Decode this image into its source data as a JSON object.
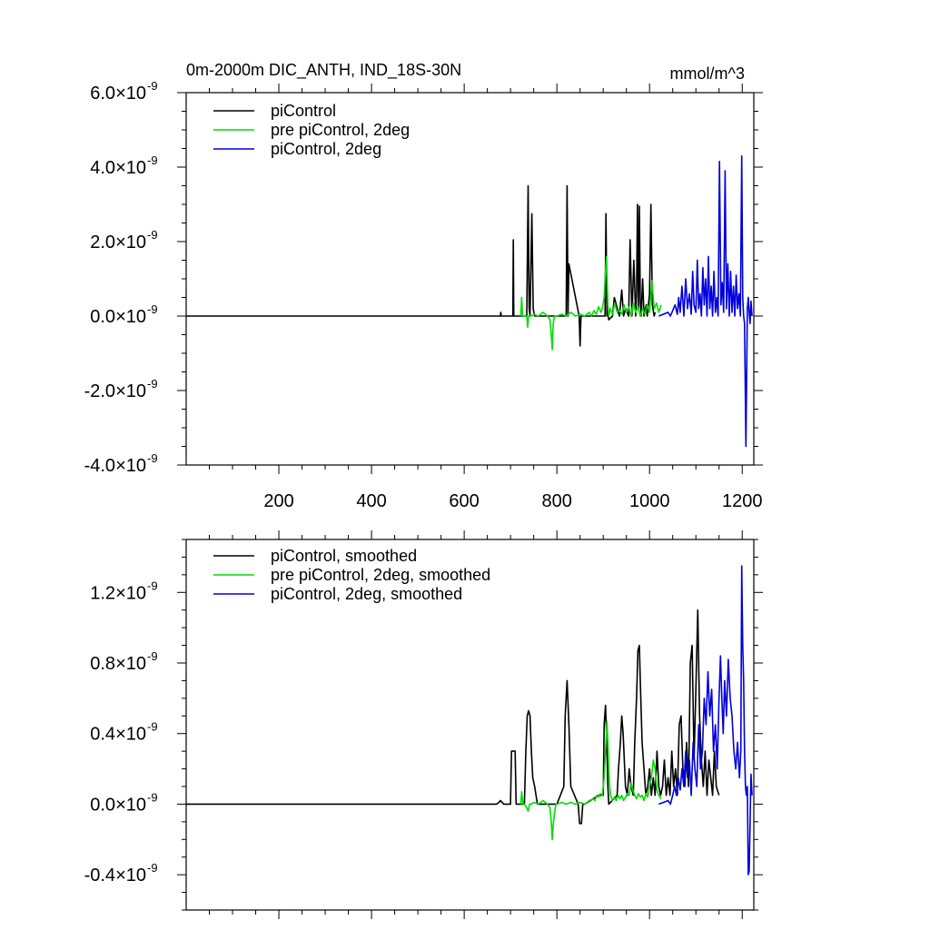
{
  "chart_data": [
    {
      "type": "line",
      "title": "0m-2000m DIC_ANTH, IND_18S-30N",
      "units": "mmol/m^3",
      "xlim": [
        0,
        1225
      ],
      "ylim": [
        -4.0,
        6.0
      ],
      "y_multiplier_label": "×10",
      "y_exponent_label": "-9",
      "x_ticks": [
        200,
        400,
        600,
        800,
        1000,
        1200
      ],
      "x_tick_labels": [
        "200",
        "400",
        "600",
        "800",
        "1000",
        "1200"
      ],
      "y_ticks": [
        -4.0,
        -2.0,
        0.0,
        2.0,
        4.0,
        6.0
      ],
      "y_tick_labels": [
        "-4.0",
        "-2.0",
        "0.0",
        "2.0",
        "4.0",
        "6.0"
      ],
      "legend_position": "top-left",
      "series": [
        {
          "name": "piControl",
          "color": "#000000",
          "x": [
            0,
            678,
            679,
            680,
            705,
            706,
            707,
            735,
            738,
            740,
            742,
            746,
            749,
            752,
            820,
            822,
            824,
            826,
            848,
            850,
            852,
            904,
            906,
            908,
            910,
            912,
            920,
            924,
            935,
            940,
            944,
            948,
            955,
            958,
            962,
            966,
            970,
            972,
            974,
            976,
            978,
            980,
            982,
            985,
            988,
            993,
            995,
            1000,
            1003,
            1006,
            1010,
            1012
          ],
          "values": [
            0,
            0,
            0.1,
            0,
            0,
            2.05,
            0,
            0,
            3.5,
            0.2,
            0,
            2.75,
            0.2,
            0,
            0,
            3.5,
            0,
            1.4,
            0,
            -0.8,
            0,
            0,
            2.75,
            0,
            0.1,
            -0.1,
            0,
            0.5,
            0,
            0.7,
            0,
            0.2,
            0,
            2.05,
            0,
            1.5,
            0,
            0.6,
            3.0,
            0.2,
            2.95,
            0.4,
            0,
            1.0,
            0,
            0.3,
            0,
            0.6,
            3.0,
            0.3,
            0,
            0.1
          ]
        },
        {
          "name": "pre piControl, 2deg",
          "color": "#00dd00",
          "x": [
            722,
            724,
            726,
            730,
            735,
            737,
            739,
            745,
            750,
            760,
            770,
            780,
            785,
            788,
            790,
            792,
            795,
            800,
            810,
            820,
            830,
            840,
            850,
            860,
            870,
            875,
            880,
            885,
            890,
            895,
            898,
            900,
            902,
            905,
            907,
            910,
            912,
            915,
            920,
            925,
            930,
            935,
            940,
            945,
            950,
            955,
            960,
            965,
            970,
            975,
            980,
            985,
            990,
            995,
            1000,
            1005,
            1010,
            1015,
            1020,
            1025
          ],
          "values": [
            0,
            0.5,
            0,
            0,
            0,
            -0.3,
            0,
            0,
            0.05,
            0,
            0.1,
            0,
            -0.1,
            -0.5,
            -0.9,
            -0.2,
            0,
            0,
            0.05,
            0,
            0.1,
            0,
            0.05,
            0,
            0.1,
            0,
            0.15,
            0.05,
            0.25,
            0.1,
            0.2,
            0.35,
            0.5,
            1.2,
            1.6,
            0.3,
            0,
            0.2,
            0.05,
            0.35,
            0.1,
            0.15,
            0.05,
            0.3,
            0.1,
            0.25,
            0,
            0.35,
            0.1,
            0.25,
            0,
            0.2,
            0.05,
            0.3,
            0.1,
            0.95,
            0.2,
            0.35,
            0.1,
            0.3
          ]
        },
        {
          "name": "piControl, 2deg",
          "color": "#0000dd",
          "x": [
            1020,
            1030,
            1040,
            1045,
            1050,
            1055,
            1060,
            1063,
            1066,
            1070,
            1074,
            1078,
            1082,
            1086,
            1090,
            1093,
            1096,
            1100,
            1103,
            1106,
            1109,
            1112,
            1115,
            1118,
            1121,
            1124,
            1127,
            1130,
            1133,
            1136,
            1139,
            1142,
            1145,
            1148,
            1151,
            1154,
            1157,
            1160,
            1163,
            1166,
            1169,
            1172,
            1175,
            1178,
            1181,
            1184,
            1187,
            1190,
            1193,
            1196,
            1199,
            1201,
            1203,
            1205,
            1208,
            1211,
            1213,
            1215,
            1217,
            1219,
            1221
          ],
          "values": [
            0,
            0.05,
            0.1,
            0,
            0.15,
            0.3,
            0.05,
            0.5,
            0.1,
            0.8,
            0,
            1.0,
            0.2,
            0.6,
            0.05,
            1.2,
            0.3,
            0.1,
            1.5,
            0.2,
            0.6,
            0,
            1.3,
            0.3,
            1.0,
            0,
            1.6,
            0.2,
            0.8,
            0,
            1.2,
            0.1,
            0.5,
            0,
            4.15,
            0.3,
            0.9,
            0.1,
            3.9,
            0.2,
            1.4,
            0,
            1.2,
            0.1,
            0.8,
            0,
            1.1,
            0.2,
            0.6,
            0,
            4.3,
            0.5,
            0,
            -0.2,
            -3.5,
            0.2,
            0.5,
            0.1,
            -0.2,
            0.4,
            0
          ]
        }
      ]
    },
    {
      "type": "line",
      "title": "",
      "units": "",
      "xlim": [
        0,
        1225
      ],
      "ylim": [
        -0.6,
        1.5
      ],
      "y_multiplier_label": "×10",
      "y_exponent_label": "-9",
      "x_ticks": [
        200,
        400,
        600,
        800,
        1000,
        1200
      ],
      "x_tick_labels": [],
      "y_ticks": [
        -0.4,
        0.0,
        0.4,
        0.8,
        1.2
      ],
      "y_tick_labels": [
        "-0.4",
        "0.0",
        "0.4",
        "0.8",
        "1.2"
      ],
      "legend_position": "top-left",
      "series": [
        {
          "name": "piControl, smoothed",
          "color": "#000000",
          "x": [
            0,
            670,
            675,
            678,
            682,
            685,
            700,
            702,
            710,
            712,
            730,
            733,
            736,
            739,
            742,
            745,
            748,
            752,
            755,
            758,
            765,
            800,
            815,
            818,
            822,
            826,
            830,
            846,
            849,
            853,
            856,
            860,
            890,
            900,
            902,
            905,
            907,
            910,
            912,
            930,
            933,
            937,
            940,
            943,
            948,
            952,
            956,
            960,
            965,
            968,
            972,
            975,
            978,
            980,
            984,
            988,
            992,
            996,
            1000,
            1004,
            1008,
            1012,
            1016,
            1020,
            1024,
            1028,
            1032,
            1036,
            1040,
            1044,
            1048,
            1052,
            1056,
            1060,
            1064,
            1068,
            1072,
            1076,
            1080,
            1084,
            1088,
            1092,
            1096,
            1100,
            1104,
            1108,
            1112,
            1116,
            1120,
            1124,
            1128,
            1132,
            1136,
            1140,
            1144,
            1150
          ],
          "values": [
            0,
            0,
            0.01,
            0.02,
            0.01,
            0,
            0,
            0.3,
            0.3,
            0,
            0,
            0.3,
            0.5,
            0.53,
            0.5,
            0.3,
            0.15,
            0.1,
            0.05,
            0,
            0,
            0,
            0.1,
            0.5,
            0.7,
            0.45,
            0.1,
            0,
            -0.11,
            -0.11,
            0,
            0,
            0.05,
            0.05,
            0.45,
            0.56,
            0.4,
            0.1,
            0,
            0.05,
            0.2,
            0.35,
            0.5,
            0.4,
            0.1,
            0.05,
            0.2,
            0.1,
            0.05,
            0.35,
            0.6,
            0.87,
            0.9,
            0.7,
            0.35,
            0.2,
            0.05,
            0.1,
            0.2,
            0.05,
            0.15,
            0.05,
            0.3,
            0.1,
            0.05,
            0.1,
            0.25,
            0.05,
            0.15,
            0.05,
            0.3,
            0.1,
            0.2,
            0.05,
            0.45,
            0.5,
            0.2,
            0.1,
            0.35,
            0.1,
            0.8,
            0.9,
            0.25,
            0.65,
            1.1,
            0.5,
            0.25,
            0.1,
            0.3,
            0.05,
            0.25,
            0.15,
            0.05,
            0.3,
            0.1,
            0.05
          ]
        },
        {
          "name": "pre piControl, 2deg, smoothed",
          "color": "#00dd00",
          "x": [
            722,
            724,
            727,
            730,
            735,
            738,
            741,
            745,
            750,
            760,
            770,
            780,
            785,
            788,
            790,
            792,
            795,
            798,
            800,
            810,
            820,
            830,
            840,
            850,
            860,
            870,
            878,
            882,
            886,
            890,
            894,
            898,
            900,
            902,
            904,
            906,
            908,
            910,
            912,
            914,
            916,
            920,
            924,
            928,
            932,
            936,
            940,
            944,
            948,
            952,
            956,
            960,
            964,
            968,
            972,
            976,
            980,
            984,
            988,
            992,
            996,
            1000,
            1004,
            1008,
            1012,
            1016,
            1020,
            1025
          ],
          "values": [
            0,
            0.07,
            0,
            0,
            -0.02,
            -0.04,
            0,
            0,
            0.01,
            0,
            0.02,
            0,
            -0.02,
            -0.1,
            -0.2,
            -0.12,
            -0.05,
            0,
            0,
            0.01,
            0,
            0.01,
            0,
            0.01,
            0,
            0.02,
            0.03,
            0.02,
            0.05,
            0.04,
            0.06,
            0.05,
            0.1,
            0.15,
            0.25,
            0.35,
            0.47,
            0.35,
            0.2,
            0.1,
            0.05,
            0.02,
            0.04,
            0.02,
            0.05,
            0.03,
            0.05,
            0.02,
            0.04,
            0.06,
            0.05,
            0.12,
            0.08,
            0.05,
            0.03,
            0.06,
            0.04,
            0.05,
            0.02,
            0.06,
            0.04,
            0.1,
            0.15,
            0.25,
            0.2,
            0.08,
            0.05,
            0.03
          ]
        },
        {
          "name": "piControl, 2deg, smoothed",
          "color": "#0000dd",
          "x": [
            1020,
            1030,
            1040,
            1045,
            1050,
            1054,
            1058,
            1062,
            1066,
            1070,
            1074,
            1078,
            1082,
            1086,
            1090,
            1094,
            1098,
            1102,
            1106,
            1110,
            1114,
            1118,
            1122,
            1126,
            1130,
            1134,
            1138,
            1142,
            1146,
            1150,
            1153,
            1156,
            1159,
            1162,
            1166,
            1170,
            1174,
            1178,
            1182,
            1186,
            1190,
            1194,
            1197,
            1199,
            1201,
            1203,
            1205,
            1207,
            1209,
            1211,
            1213,
            1215,
            1217,
            1219,
            1221
          ],
          "values": [
            0,
            0.01,
            0.02,
            0,
            0.05,
            0.1,
            0.05,
            0.15,
            0.08,
            0.2,
            0.1,
            0.3,
            0.15,
            0.25,
            0.05,
            0.35,
            0.2,
            0.1,
            0.45,
            0.2,
            0.3,
            0.6,
            0.45,
            0.75,
            0.5,
            0.65,
            0.3,
            0.45,
            0.2,
            0.6,
            0.84,
            0.6,
            0.4,
            0.7,
            0.5,
            0.82,
            0.6,
            0.5,
            0.3,
            0.2,
            0.35,
            0.15,
            0.3,
            1.35,
            0.9,
            0.7,
            0.3,
            0.1,
            0.05,
            0.1,
            -0.4,
            -0.38,
            -0.1,
            0.17,
            0.05
          ]
        }
      ]
    }
  ]
}
